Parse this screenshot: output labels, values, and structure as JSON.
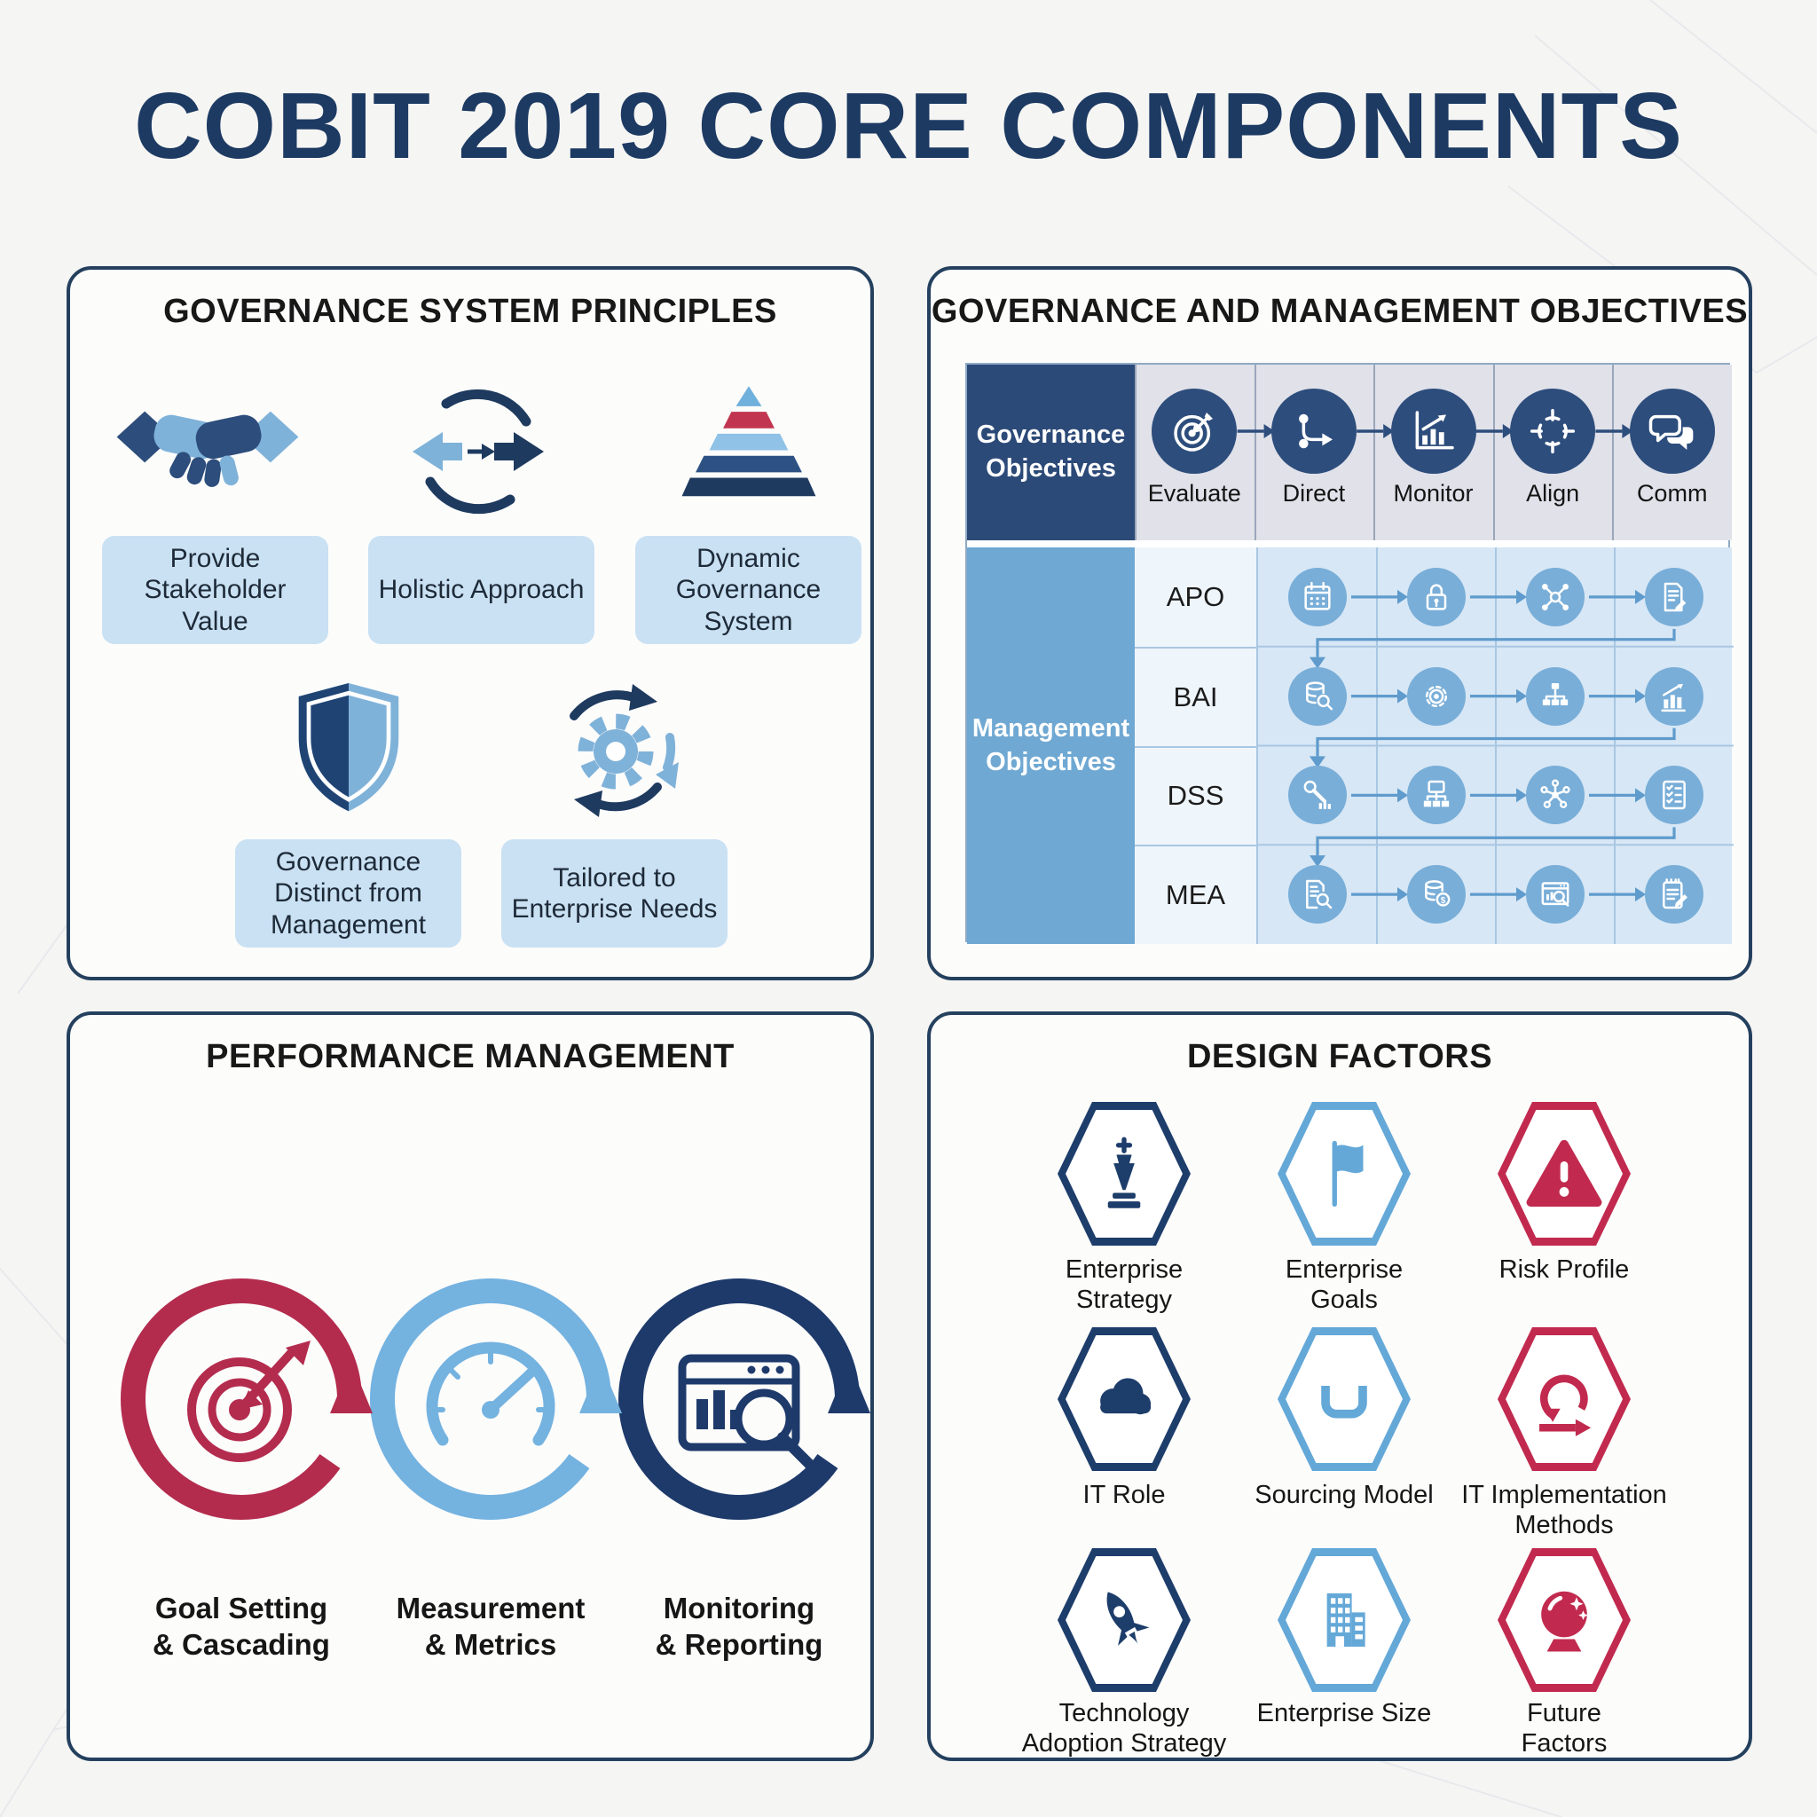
{
  "title": "COBIT 2019 CORE COMPONENTS",
  "colors": {
    "title_navy": "#1d3a63",
    "panel_border_navy": "#24405e",
    "icon_navy": "#2d4d7c",
    "icon_dark_navy": "#1e3a5f",
    "icon_sky": "#7fb2d9",
    "label_box_blue": "#c9e1f3",
    "table_header_navy": "#2c4a78",
    "table_header_blue": "#6fa8d2",
    "table_cell_gray": "#e0e1e9",
    "table_grid_bg": "#d7e7f5",
    "table_circle_blue": "#79aed8",
    "crimson": "#bf2c4e"
  },
  "panels": {
    "principles": {
      "title": "GOVERNANCE SYSTEM PRINCIPLES",
      "items": [
        {
          "icon": "handshake-icon",
          "label": "Provide Stakeholder Value"
        },
        {
          "icon": "cycle-arrows-icon",
          "label": "Holistic Approach"
        },
        {
          "icon": "pyramid-icon",
          "label": "Dynamic Governance System"
        },
        {
          "icon": "shield-icon",
          "label": "Governance Distinct from Management"
        },
        {
          "icon": "gear-cycle-icon",
          "label": "Tailored to Enterprise Needs"
        }
      ]
    },
    "objectives": {
      "title": "GOVERNANCE AND MANAGEMENT OBJECTIVES",
      "governance_row": {
        "header": "Governance\nObjectives",
        "cells": [
          {
            "icon": "target-icon",
            "label": "Evaluate"
          },
          {
            "icon": "branch-icon",
            "label": "Direct"
          },
          {
            "icon": "bar-chart-icon",
            "label": "Monitor"
          },
          {
            "icon": "crosshair-icon",
            "label": "Align"
          },
          {
            "icon": "chat-icon",
            "label": "Comm"
          }
        ]
      },
      "management": {
        "header": "Management\nObjectives",
        "rows": [
          {
            "label": "APO",
            "icons": [
              "calendar-icon",
              "lock-icon",
              "share-network-icon",
              "document-pen-icon"
            ]
          },
          {
            "label": "BAI",
            "icons": [
              "database-search-icon",
              "gear-icon",
              "hierarchy-icon",
              "chart-growth-icon"
            ]
          },
          {
            "label": "DSS",
            "icons": [
              "tools-chart-icon",
              "workstation-hierarchy-icon",
              "network-nodes-icon",
              "checklist-icon"
            ]
          },
          {
            "label": "MEA",
            "icons": [
              "document-search-icon",
              "database-dollar-icon",
              "window-search-icon",
              "notepad-pencil-icon"
            ]
          }
        ]
      }
    },
    "performance": {
      "title": "PERFORMANCE MANAGEMENT",
      "stages": [
        {
          "icon": "target-arrow-icon",
          "label": "Goal Setting\n& Cascading",
          "color": "#b32c4e"
        },
        {
          "icon": "gauge-icon",
          "label": "Measurement\n& Metrics",
          "color": "#74b2e0"
        },
        {
          "icon": "monitor-search-icon",
          "label": "Monitoring\n& Reporting",
          "color": "#1e3a6b"
        }
      ]
    },
    "design_factors": {
      "title": "DESIGN FACTORS",
      "factors": [
        {
          "icon": "chess-king-icon",
          "label": "Enterprise\nStrategy",
          "color": "#1d3d6b"
        },
        {
          "icon": "flag-icon",
          "label": "Enterprise\nGoals",
          "color": "#64a8d8"
        },
        {
          "icon": "warning-icon",
          "label": "Risk Profile",
          "color": "#c12a4e"
        },
        {
          "icon": "cloud-icon",
          "label": "IT Role",
          "color": "#1d3d6b"
        },
        {
          "icon": "hands-icon",
          "label": "Sourcing Model",
          "color": "#64a8d8"
        },
        {
          "icon": "agile-loop-icon",
          "label": "IT Implementation\nMethods",
          "color": "#c12a4e"
        },
        {
          "icon": "rocket-icon",
          "label": "Technology\nAdoption Strategy",
          "color": "#1d3d6b"
        },
        {
          "icon": "building-icon",
          "label": "Enterprise Size",
          "color": "#64a8d8"
        },
        {
          "icon": "crystal-ball-icon",
          "label": "Future\nFactors",
          "color": "#c12a4e"
        }
      ]
    }
  }
}
